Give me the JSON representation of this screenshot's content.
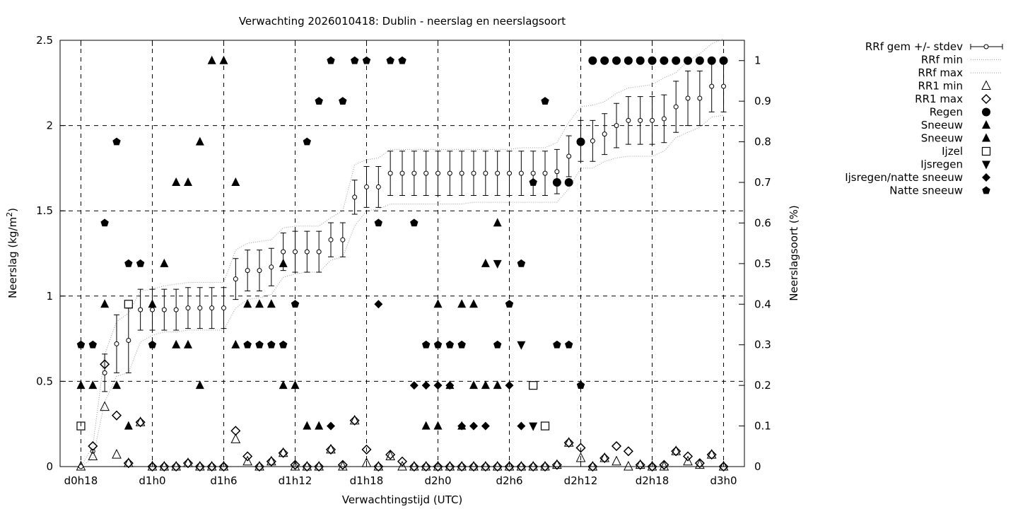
{
  "chart_data": {
    "type": "scatter",
    "title": "Verwachting 2026010418: Dublin - neerslag en neerslagsoort",
    "xlabel": "Verwachtingstijd (UTC)",
    "ylabel": "Neerslag (kg/m",
    "ylabel_sup": "2",
    "ylabel_end": ")",
    "y2label": "Neerslagsoort (%)",
    "x_unit": "hours from d0h18",
    "xlim": [
      -1.75,
      55.75
    ],
    "ylim": [
      0,
      2.5
    ],
    "y2lim": [
      0,
      1.05
    ],
    "x_ticks": [
      {
        "x": 0,
        "label": "d0h18"
      },
      {
        "x": 6,
        "label": "d1h0"
      },
      {
        "x": 12,
        "label": "d1h6"
      },
      {
        "x": 18,
        "label": "d1h12"
      },
      {
        "x": 24,
        "label": "d1h18"
      },
      {
        "x": 30,
        "label": "d2h0"
      },
      {
        "x": 36,
        "label": "d2h6"
      },
      {
        "x": 42,
        "label": "d2h12"
      },
      {
        "x": 48,
        "label": "d2h18"
      },
      {
        "x": 54,
        "label": "d3h0"
      }
    ],
    "y_ticks": [
      "0",
      "0.5",
      "1",
      "1.5",
      "2",
      "2.5"
    ],
    "y2_ticks": [
      "0",
      "0.1",
      "0.2",
      "0.3",
      "0.4",
      "0.5",
      "0.6",
      "0.7",
      "0.8",
      "0.9",
      "1"
    ],
    "grid": true,
    "legend_position": "outside-right",
    "legend": [
      {
        "label": "RRf gem +/- stdev",
        "symbol": "errorbar"
      },
      {
        "label": "RRf min",
        "symbol": "dotted"
      },
      {
        "label": "RRf max",
        "symbol": "dotted"
      },
      {
        "label": "RR1 min",
        "symbol": "triangle-open"
      },
      {
        "label": "RR1 max",
        "symbol": "diamond-open"
      },
      {
        "label": "Regen",
        "symbol": "circle"
      },
      {
        "label": "Sneeuw",
        "symbol": "triangle"
      },
      {
        "label": "Sneeuw",
        "symbol": "triangle"
      },
      {
        "label": "Ijzel",
        "symbol": "square-open"
      },
      {
        "label": "Ijsregen",
        "symbol": "triangle-down"
      },
      {
        "label": "Ijsregen/natte sneeuw",
        "symbol": "diamond"
      },
      {
        "label": "Natte sneeuw",
        "symbol": "pentagon"
      }
    ],
    "rrf_mean": [
      0,
      0.09,
      0.55,
      0.72,
      0.74,
      0.92,
      0.92,
      0.92,
      0.92,
      0.93,
      0.93,
      0.93,
      0.93,
      1.1,
      1.15,
      1.15,
      1.17,
      1.26,
      1.26,
      1.26,
      1.26,
      1.33,
      1.33,
      1.58,
      1.64,
      1.64,
      1.72,
      1.72,
      1.72,
      1.72,
      1.72,
      1.72,
      1.72,
      1.72,
      1.72,
      1.72,
      1.72,
      1.72,
      1.72,
      1.72,
      1.73,
      1.82,
      1.91,
      1.91,
      1.95,
      2.0,
      2.03,
      2.03,
      2.03,
      2.04,
      2.11,
      2.16,
      2.16,
      2.23,
      2.23
    ],
    "rrf_stdev": [
      0,
      0,
      0.11,
      0.17,
      0.19,
      0.12,
      0.12,
      0.12,
      0.12,
      0.12,
      0.12,
      0.12,
      0.12,
      0.12,
      0.12,
      0.12,
      0.11,
      0.11,
      0.12,
      0.12,
      0.12,
      0.1,
      0.1,
      0.1,
      0.12,
      0.12,
      0.13,
      0.13,
      0.13,
      0.13,
      0.13,
      0.13,
      0.13,
      0.13,
      0.13,
      0.13,
      0.13,
      0.13,
      0.13,
      0.13,
      0.13,
      0.12,
      0.12,
      0.12,
      0.12,
      0.13,
      0.14,
      0.14,
      0.14,
      0.14,
      0.15,
      0.16,
      0.16,
      0.15,
      0.15
    ],
    "rrf_min": [
      0,
      0.05,
      0.38,
      0.53,
      0.55,
      0.73,
      0.77,
      0.79,
      0.79,
      0.8,
      0.8,
      0.8,
      0.8,
      0.93,
      0.98,
      0.99,
      1.01,
      1.11,
      1.13,
      1.14,
      1.14,
      1.21,
      1.23,
      1.41,
      1.5,
      1.51,
      1.54,
      1.54,
      1.54,
      1.54,
      1.54,
      1.54,
      1.54,
      1.55,
      1.55,
      1.55,
      1.55,
      1.55,
      1.55,
      1.55,
      1.55,
      1.63,
      1.75,
      1.75,
      1.79,
      1.81,
      1.82,
      1.82,
      1.82,
      1.85,
      1.93,
      1.96,
      1.99,
      2.05,
      2.06
    ],
    "rrf_max": [
      0,
      0.12,
      0.66,
      0.85,
      0.9,
      1.03,
      1.04,
      1.06,
      1.07,
      1.08,
      1.08,
      1.08,
      1.08,
      1.27,
      1.31,
      1.32,
      1.33,
      1.4,
      1.41,
      1.41,
      1.41,
      1.46,
      1.5,
      1.77,
      1.8,
      1.81,
      1.86,
      1.86,
      1.86,
      1.86,
      1.86,
      1.86,
      1.86,
      1.86,
      1.86,
      1.86,
      1.86,
      1.87,
      1.87,
      1.87,
      1.9,
      2.02,
      2.11,
      2.12,
      2.14,
      2.19,
      2.22,
      2.23,
      2.24,
      2.28,
      2.31,
      2.38,
      2.42,
      2.48,
      2.51
    ],
    "rr1_min": [
      [
        0,
        0
      ],
      [
        1,
        0.06
      ],
      [
        2,
        0.35
      ],
      [
        3,
        0.07
      ],
      [
        4,
        0.02
      ],
      [
        5,
        0.26
      ],
      [
        6,
        0
      ],
      [
        7,
        0
      ],
      [
        8,
        0
      ],
      [
        9,
        0.02
      ],
      [
        10,
        0
      ],
      [
        11,
        0
      ],
      [
        12,
        0
      ],
      [
        13,
        0.16
      ],
      [
        14,
        0.03
      ],
      [
        15,
        0
      ],
      [
        16,
        0.03
      ],
      [
        17,
        0.08
      ],
      [
        18,
        0
      ],
      [
        19,
        0
      ],
      [
        20,
        0
      ],
      [
        21,
        0.1
      ],
      [
        22,
        0
      ],
      [
        23,
        0.27
      ],
      [
        24,
        0.02
      ],
      [
        25,
        0
      ],
      [
        26,
        0.06
      ],
      [
        27,
        0
      ],
      [
        28,
        0
      ],
      [
        29,
        0
      ],
      [
        30,
        0
      ],
      [
        31,
        0
      ],
      [
        32,
        0
      ],
      [
        33,
        0
      ],
      [
        34,
        0
      ],
      [
        35,
        0
      ],
      [
        36,
        0
      ],
      [
        37,
        0
      ],
      [
        38,
        0
      ],
      [
        39,
        0
      ],
      [
        40,
        0.01
      ],
      [
        41,
        0.14
      ],
      [
        42,
        0.05
      ],
      [
        43,
        0
      ],
      [
        44,
        0.05
      ],
      [
        45,
        0.03
      ],
      [
        46,
        0
      ],
      [
        47,
        0.01
      ],
      [
        48,
        0
      ],
      [
        49,
        0
      ],
      [
        50,
        0.09
      ],
      [
        51,
        0.03
      ],
      [
        52,
        0.01
      ],
      [
        53,
        0.07
      ],
      [
        54,
        0
      ]
    ],
    "rr1_max": [
      [
        1,
        0.12
      ],
      [
        2,
        0.6
      ],
      [
        3,
        0.3
      ],
      [
        4,
        0.02
      ],
      [
        5,
        0.26
      ],
      [
        6,
        0
      ],
      [
        7,
        0
      ],
      [
        8,
        0
      ],
      [
        9,
        0.02
      ],
      [
        10,
        0
      ],
      [
        11,
        0
      ],
      [
        12,
        0
      ],
      [
        13,
        0.21
      ],
      [
        14,
        0.06
      ],
      [
        15,
        0
      ],
      [
        16,
        0.03
      ],
      [
        17,
        0.08
      ],
      [
        18,
        0.01
      ],
      [
        19,
        0
      ],
      [
        20,
        0
      ],
      [
        21,
        0.1
      ],
      [
        22,
        0.01
      ],
      [
        23,
        0.27
      ],
      [
        24,
        0.1
      ],
      [
        25,
        0
      ],
      [
        26,
        0.07
      ],
      [
        27,
        0.03
      ],
      [
        28,
        0
      ],
      [
        29,
        0
      ],
      [
        30,
        0
      ],
      [
        31,
        0
      ],
      [
        32,
        0
      ],
      [
        33,
        0
      ],
      [
        34,
        0
      ],
      [
        35,
        0
      ],
      [
        36,
        0
      ],
      [
        37,
        0
      ],
      [
        38,
        0
      ],
      [
        39,
        0
      ],
      [
        40,
        0.01
      ],
      [
        41,
        0.14
      ],
      [
        42,
        0.11
      ],
      [
        43,
        0
      ],
      [
        44,
        0.05
      ],
      [
        45,
        0.12
      ],
      [
        46,
        0.09
      ],
      [
        47,
        0.01
      ],
      [
        48,
        0
      ],
      [
        49,
        0.01
      ],
      [
        50,
        0.09
      ],
      [
        51,
        0.06
      ],
      [
        52,
        0.02
      ],
      [
        53,
        0.07
      ],
      [
        54,
        0
      ]
    ],
    "regen": [
      [
        42,
        0.8
      ],
      [
        43,
        1
      ],
      [
        44,
        1
      ],
      [
        45,
        1
      ],
      [
        46,
        1
      ],
      [
        47,
        1
      ],
      [
        48,
        1
      ],
      [
        49,
        1
      ],
      [
        50,
        1
      ],
      [
        51,
        1
      ],
      [
        52,
        1
      ],
      [
        53,
        1
      ],
      [
        54,
        1
      ],
      [
        40,
        0.7
      ],
      [
        41,
        0.7
      ]
    ],
    "sneeuw": [
      [
        0,
        0.2
      ],
      [
        1,
        0.2
      ],
      [
        2,
        0.4
      ],
      [
        3,
        0.2
      ],
      [
        4,
        0.1
      ],
      [
        6,
        0.4
      ],
      [
        7,
        0.5
      ],
      [
        8,
        0.7
      ],
      [
        8,
        0.3
      ],
      [
        9,
        0.7
      ],
      [
        9,
        0.3
      ],
      [
        10,
        0.8
      ],
      [
        10,
        0.2
      ],
      [
        11,
        1
      ],
      [
        12,
        1
      ],
      [
        13,
        0.7
      ],
      [
        13,
        0.3
      ],
      [
        14,
        0.4
      ],
      [
        15,
        0.4
      ],
      [
        16,
        0.4
      ],
      [
        17,
        0.5
      ],
      [
        17,
        0.2
      ],
      [
        18,
        0.2
      ],
      [
        19,
        0.1
      ],
      [
        20,
        0.1
      ],
      [
        29,
        0.1
      ],
      [
        30,
        0.1
      ],
      [
        30,
        0.4
      ],
      [
        31,
        0.2
      ],
      [
        32,
        0.1
      ],
      [
        32,
        0.4
      ],
      [
        33,
        0.4
      ],
      [
        33,
        0.2
      ],
      [
        34,
        0.5
      ],
      [
        34,
        0.2
      ],
      [
        35,
        0.6
      ],
      [
        35,
        0.2
      ]
    ],
    "ijzel": [
      [
        0,
        0.1
      ],
      [
        4,
        0.4
      ],
      [
        38,
        0.2
      ],
      [
        39,
        0.1
      ]
    ],
    "ijsregen": [
      [
        35,
        0.5
      ],
      [
        37,
        0.3
      ],
      [
        38,
        0.1
      ]
    ],
    "ijsregen_natte_sneeuw": [
      [
        21,
        0.1
      ],
      [
        25,
        0.4
      ],
      [
        28,
        0.2
      ],
      [
        29,
        0.2
      ],
      [
        30,
        0.2
      ],
      [
        31,
        0.2
      ],
      [
        32,
        0.1
      ],
      [
        33,
        0.1
      ],
      [
        34,
        0.1
      ],
      [
        36,
        0.2
      ],
      [
        37,
        0.1
      ]
    ],
    "natte_sneeuw": [
      [
        0,
        0.3
      ],
      [
        1,
        0.3
      ],
      [
        2,
        0.6
      ],
      [
        3,
        0.8
      ],
      [
        4,
        0.5
      ],
      [
        5,
        0.5
      ],
      [
        6,
        0.3
      ],
      [
        14,
        0.3
      ],
      [
        15,
        0.3
      ],
      [
        16,
        0.3
      ],
      [
        17,
        0.3
      ],
      [
        18,
        0.4
      ],
      [
        19,
        0.8
      ],
      [
        20,
        0.9
      ],
      [
        21,
        1
      ],
      [
        22,
        0.9
      ],
      [
        23,
        1
      ],
      [
        24,
        1
      ],
      [
        25,
        0.6
      ],
      [
        26,
        1
      ],
      [
        27,
        1
      ],
      [
        28,
        0.6
      ],
      [
        29,
        0.3
      ],
      [
        30,
        0.3
      ],
      [
        31,
        0.3
      ],
      [
        32,
        0.3
      ],
      [
        35,
        0.3
      ],
      [
        36,
        0.4
      ],
      [
        37,
        0.5
      ],
      [
        38,
        0.7
      ],
      [
        39,
        0.9
      ],
      [
        40,
        0.3
      ],
      [
        41,
        0.3
      ],
      [
        42,
        0.2
      ]
    ]
  }
}
